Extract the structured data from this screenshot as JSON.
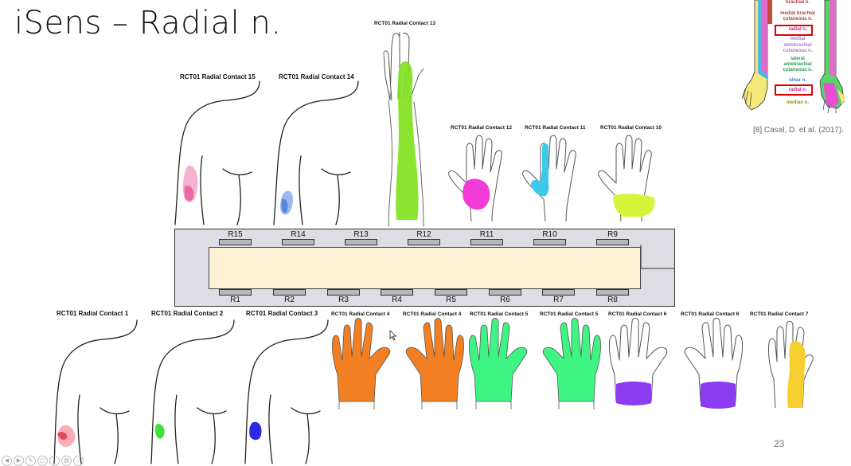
{
  "slide": {
    "title": "iSens – Radial n.",
    "citation": "[8] Casal, D. et al. (2017).",
    "page_number": "23"
  },
  "inset": {
    "labels": [
      {
        "text": "brachial n.",
        "color": "#b1423a"
      },
      {
        "text": "medial brachial",
        "color": "#b1423a"
      },
      {
        "text": "cutaneous n.",
        "color": "#b1423a"
      },
      {
        "text": "radial n.",
        "color": "#d2277a"
      },
      {
        "text": "medial",
        "color": "#b07cc6"
      },
      {
        "text": "antebrachial",
        "color": "#b07cc6"
      },
      {
        "text": "cutaneous n.",
        "color": "#b07cc6"
      },
      {
        "text": "lateral",
        "color": "#2a9a58"
      },
      {
        "text": "antebrachial",
        "color": "#2a9a58"
      },
      {
        "text": "cutaneous n.",
        "color": "#2a9a58"
      },
      {
        "text": "ulnar n.",
        "color": "#3a7ad6"
      },
      {
        "text": "radial n.",
        "color": "#d2277a"
      },
      {
        "text": "median n.",
        "color": "#a08a10"
      }
    ]
  },
  "electrode": {
    "top_pads": [
      "R15",
      "R14",
      "R13",
      "R12",
      "R11",
      "R10",
      "R9"
    ],
    "bottom_pads": [
      "R1",
      "R2",
      "R3",
      "R4",
      "R5",
      "R6",
      "R7",
      "R8"
    ]
  },
  "figures": {
    "c15": {
      "caption": "RCT01 Radial Contact 15",
      "color": "#e8559a"
    },
    "c14": {
      "caption": "RCT01 Radial Contact 14",
      "color": "#4a7fe0"
    },
    "c13": {
      "caption": "RCT01 Radial Contact 13",
      "color": "#7ee11a"
    },
    "c12": {
      "caption": "RCT01 Radial Contact 12",
      "color": "#f23ad6"
    },
    "c11": {
      "caption": "RCT01 Radial Contact 11",
      "color": "#3ec8ea"
    },
    "c10": {
      "caption": "RCT01 Radial Contact 10",
      "color": "#d6f53a"
    },
    "c1": {
      "caption": "RCT01 Radial Contact 1",
      "color": "#f26a80"
    },
    "c2": {
      "caption": "RCT01 Radial Contact 2",
      "color": "#3ee03a"
    },
    "c3": {
      "caption": "RCT01 Radial Contact 3",
      "color": "#2a2ae0"
    },
    "c4a": {
      "caption": "RCT01 Radial Contact 4",
      "color": "#f27f22"
    },
    "c4b": {
      "caption": "RCT01 Radial Contact 4",
      "color": "#f27f22"
    },
    "c5a": {
      "caption": "RCT01 Radial Contact 5",
      "color": "#3ef583"
    },
    "c5b": {
      "caption": "RCT01 Radial Contact 5",
      "color": "#3ef583"
    },
    "c6a": {
      "caption": "RCT01 Radial Contact 6",
      "color": "#8c3cf0"
    },
    "c6b": {
      "caption": "RCT01 Radial Contact 6",
      "color": "#8c3cf0"
    },
    "c7": {
      "caption": "RCT01 Radial Contact 7",
      "color": "#f7cf2e"
    }
  },
  "toolbar": {
    "icons": [
      "prev-icon",
      "play-icon",
      "pen-icon",
      "slides-icon",
      "zoom-icon",
      "menu-icon",
      "more-icon"
    ]
  }
}
